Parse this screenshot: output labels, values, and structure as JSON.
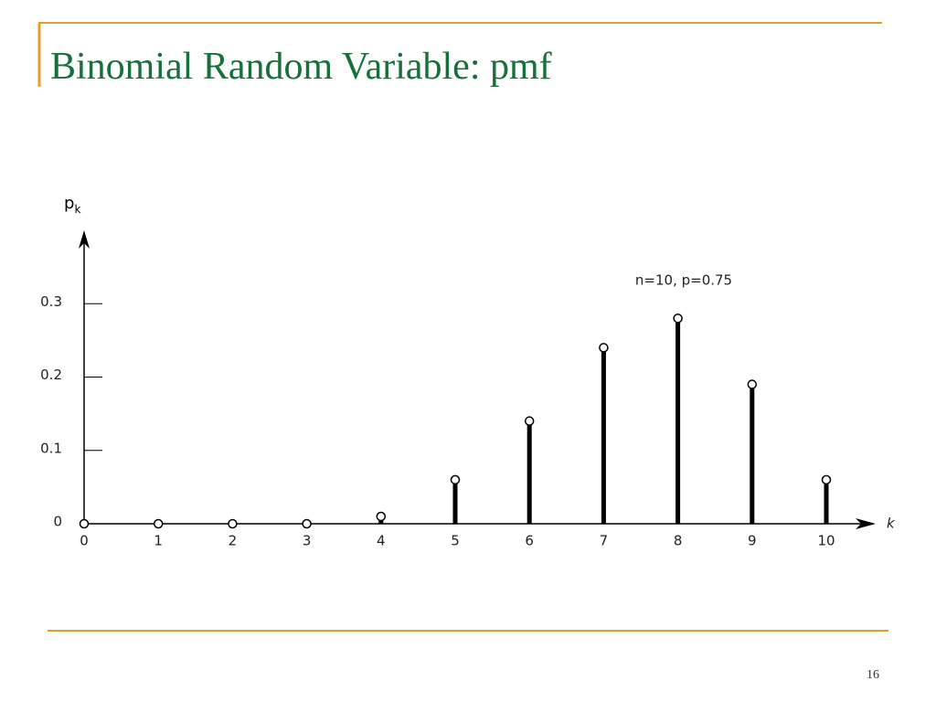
{
  "slide": {
    "title": "Binomial Random Variable: pmf",
    "page_number": "16"
  },
  "chart_data": {
    "type": "stem",
    "y_label": "p",
    "y_label_sub": "k",
    "x_label": "k",
    "annotation": "n=10, p=0.75",
    "categories": [
      "0",
      "1",
      "2",
      "3",
      "4",
      "5",
      "6",
      "7",
      "8",
      "9",
      "10"
    ],
    "values": [
      0,
      0,
      0,
      0,
      0.01,
      0.06,
      0.14,
      0.24,
      0.28,
      0.19,
      0.06
    ],
    "color": "#000000",
    "ylim": [
      0,
      0.4
    ],
    "yticks": [
      0,
      0.1,
      0.2,
      0.3
    ]
  }
}
